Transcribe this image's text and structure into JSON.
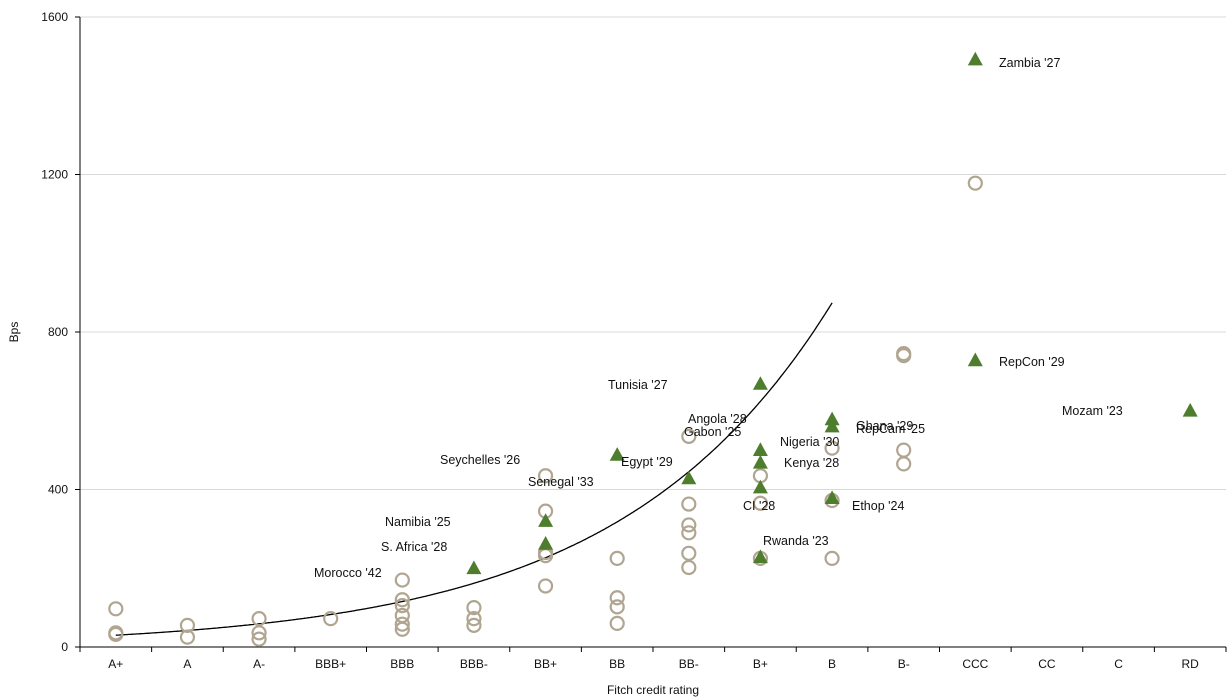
{
  "chart_data": {
    "type": "scatter",
    "title": "",
    "xlabel": "Fitch credit rating",
    "ylabel": "Bps",
    "categories": [
      "A+",
      "A",
      "A-",
      "BBB+",
      "BBB",
      "BBB-",
      "BB+",
      "BB",
      "BB-",
      "B+",
      "B",
      "B-",
      "CCC",
      "CC",
      "C",
      "RD"
    ],
    "ylim": [
      0,
      1600
    ],
    "yticks": [
      0,
      400,
      800,
      1200,
      1600
    ],
    "grid": "horizontal",
    "colors": {
      "circle": "#b0a590",
      "triangle": "#4e7d2e",
      "curve": "#000000",
      "grid": "#d9d9d9"
    },
    "series": [
      {
        "marker": "circle",
        "points": [
          {
            "x": "A+",
            "y": 97
          },
          {
            "x": "A+",
            "y": 36
          },
          {
            "x": "A+",
            "y": 32
          },
          {
            "x": "A",
            "y": 55
          },
          {
            "x": "A",
            "y": 25
          },
          {
            "x": "A-",
            "y": 72
          },
          {
            "x": "A-",
            "y": 36
          },
          {
            "x": "A-",
            "y": 20
          },
          {
            "x": "BBB+",
            "y": 72
          },
          {
            "x": "BBB",
            "y": 170
          },
          {
            "x": "BBB",
            "y": 120
          },
          {
            "x": "BBB",
            "y": 105
          },
          {
            "x": "BBB",
            "y": 80
          },
          {
            "x": "BBB",
            "y": 58
          },
          {
            "x": "BBB",
            "y": 45
          },
          {
            "x": "BBB-",
            "y": 100
          },
          {
            "x": "BBB-",
            "y": 72
          },
          {
            "x": "BBB-",
            "y": 55
          },
          {
            "x": "BB+",
            "y": 435
          },
          {
            "x": "BB+",
            "y": 345
          },
          {
            "x": "BB+",
            "y": 240
          },
          {
            "x": "BB+",
            "y": 232
          },
          {
            "x": "BB+",
            "y": 155
          },
          {
            "x": "BB",
            "y": 225
          },
          {
            "x": "BB",
            "y": 125
          },
          {
            "x": "BB",
            "y": 102
          },
          {
            "x": "BB",
            "y": 60
          },
          {
            "x": "BB-",
            "y": 535
          },
          {
            "x": "BB-",
            "y": 363
          },
          {
            "x": "BB-",
            "y": 310
          },
          {
            "x": "BB-",
            "y": 290
          },
          {
            "x": "BB-",
            "y": 238
          },
          {
            "x": "BB-",
            "y": 202
          },
          {
            "x": "B+",
            "y": 435
          },
          {
            "x": "B+",
            "y": 365
          },
          {
            "x": "B+",
            "y": 225
          },
          {
            "x": "B",
            "y": 505
          },
          {
            "x": "B",
            "y": 372
          },
          {
            "x": "B",
            "y": 225
          },
          {
            "x": "B-",
            "y": 745
          },
          {
            "x": "B-",
            "y": 740
          },
          {
            "x": "B-",
            "y": 500
          },
          {
            "x": "B-",
            "y": 465
          },
          {
            "x": "CCC",
            "y": 1178
          }
        ]
      },
      {
        "marker": "triangle",
        "points": [
          {
            "x": "BBB-",
            "y": 200,
            "label": "S. Africa '28"
          },
          {
            "x": "BB+",
            "y": 320,
            "label": "Namibia '25"
          },
          {
            "x": "BB+",
            "y": 262,
            "label": ""
          },
          {
            "x": "BB",
            "y": 488,
            "label": "Seychelles '26"
          },
          {
            "x": "BB-",
            "y": 428,
            "label": "Egypt '29"
          },
          {
            "x": "B+",
            "y": 668,
            "label": "Tunisia '27"
          },
          {
            "x": "B+",
            "y": 500,
            "label": ""
          },
          {
            "x": "B+",
            "y": 468,
            "label": ""
          },
          {
            "x": "B+",
            "y": 405,
            "label": "Kenya '28"
          },
          {
            "x": "B+",
            "y": 228,
            "label": ""
          },
          {
            "x": "B",
            "y": 578,
            "label": "Angola '28"
          },
          {
            "x": "B",
            "y": 560,
            "label": ""
          },
          {
            "x": "B",
            "y": 378,
            "label": ""
          },
          {
            "x": "CCC",
            "y": 1492,
            "label": "Zambia '27"
          },
          {
            "x": "CCC",
            "y": 728,
            "label": "RepCon '29"
          },
          {
            "x": "RD",
            "y": 600,
            "label": ""
          }
        ]
      }
    ],
    "annotations": [
      "Morocco '42",
      "S. Africa '28",
      "Namibia '25",
      "Seychelles '26",
      "Senegal '33",
      "Egypt '29",
      "Tunisia '27",
      "Angola '28",
      "Gabon '25",
      "Nigeria '30",
      "Kenya '28",
      "CI '28",
      "Rwanda '23",
      "Ghana '29",
      "RepCam '25",
      "Ethop '24",
      "Zambia '27",
      "RepCon '29",
      "Mozam '23"
    ],
    "trend": {
      "type": "exponential",
      "y_start": 30,
      "growth": 1.401
    }
  }
}
